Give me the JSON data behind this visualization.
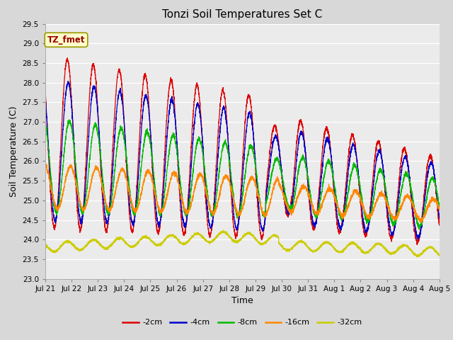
{
  "title": "Tonzi Soil Temperatures Set C",
  "xlabel": "Time",
  "ylabel": "Soil Temperature (C)",
  "ylim": [
    23.0,
    29.5
  ],
  "yticks": [
    23.0,
    23.5,
    24.0,
    24.5,
    25.0,
    25.5,
    26.0,
    26.5,
    27.0,
    27.5,
    28.0,
    28.5,
    29.0,
    29.5
  ],
  "x_labels": [
    "Jul 21",
    "Jul 22",
    "Jul 23",
    "Jul 24",
    "Jul 25",
    "Jul 26",
    "Jul 27",
    "Jul 28",
    "Jul 29",
    "Jul 30",
    "Jul 31",
    "Aug 1",
    "Aug 2",
    "Aug 3",
    "Aug 4",
    "Aug 5"
  ],
  "annotation_label": "TZ_fmet",
  "annotation_color": "#990000",
  "annotation_bg": "#ffffcc",
  "annotation_edge": "#999900",
  "series_colors": {
    "-2cm": "#dd0000",
    "-4cm": "#0000cc",
    "-8cm": "#00bb00",
    "-16cm": "#ff8800",
    "-32cm": "#cccc00"
  },
  "legend_entries": [
    "-2cm",
    "-4cm",
    "-8cm",
    "-16cm",
    "-32cm"
  ],
  "fig_bg": "#d8d8d8",
  "plot_bg": "#ebebeb",
  "grid_color": "#ffffff",
  "n_days": 15.2
}
